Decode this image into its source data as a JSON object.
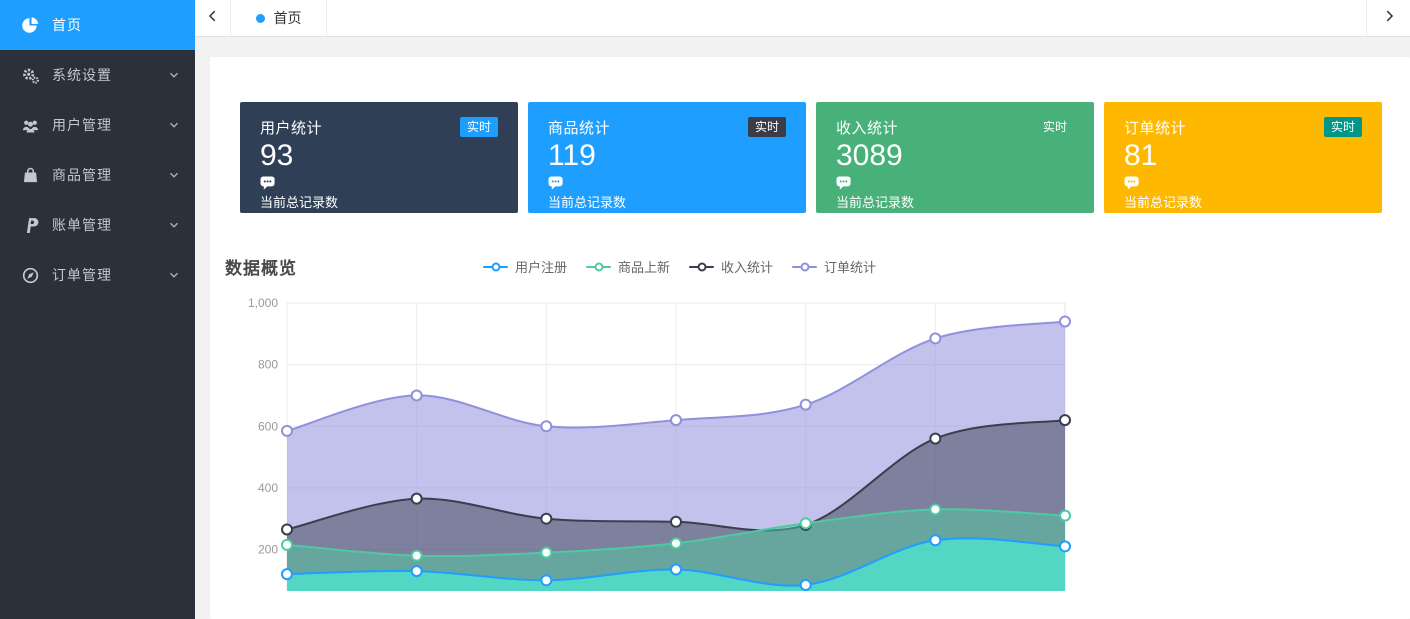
{
  "accent": "#1E9FFF",
  "sidebar": {
    "items": [
      {
        "label": "首页",
        "icon": "pie-chart-icon",
        "active": true,
        "has_children": false
      },
      {
        "label": "系统设置",
        "icon": "cogs-icon",
        "active": false,
        "has_children": true
      },
      {
        "label": "用户管理",
        "icon": "users-icon",
        "active": false,
        "has_children": true
      },
      {
        "label": "商品管理",
        "icon": "shopping-bag-icon",
        "active": false,
        "has_children": true
      },
      {
        "label": "账单管理",
        "icon": "paypal-icon",
        "active": false,
        "has_children": true
      },
      {
        "label": "订单管理",
        "icon": "compass-icon",
        "active": false,
        "has_children": true
      }
    ]
  },
  "topbar": {
    "tab_label": "首页"
  },
  "cards": [
    {
      "title": "用户统计",
      "badge": "实时",
      "value": "93",
      "note": "当前总记录数",
      "bg": "#2F4056",
      "badge_bg": "#1E9FFF"
    },
    {
      "title": "商品统计",
      "badge": "实时",
      "value": "119",
      "note": "当前总记录数",
      "bg": "#1E9FFF",
      "badge_bg": "#393D49"
    },
    {
      "title": "收入统计",
      "badge": "实时",
      "value": "3089",
      "note": "当前总记录数",
      "bg": "#47B179",
      "badge_bg": "#47B179"
    },
    {
      "title": "订单统计",
      "badge": "实时",
      "value": "81",
      "note": "当前总记录数",
      "bg": "#FFB800",
      "badge_bg": "#009688"
    }
  ],
  "overview": {
    "title": "数据概览"
  },
  "chart_data": {
    "type": "area",
    "title": "数据概览",
    "x_labels_visible": false,
    "x_points": 7,
    "ylim": [
      0,
      1000
    ],
    "ytick_labels": [
      "1,000",
      "800",
      "600",
      "400",
      "200"
    ],
    "ytick_values": [
      1000,
      800,
      600,
      400,
      200
    ],
    "grid": true,
    "legend_position": "top-center",
    "series": [
      {
        "name": "用户注册",
        "color": "#1E9FFF",
        "fill": "rgba(82,216,197,0.95)",
        "values": [
          120,
          130,
          100,
          135,
          85,
          230,
          210
        ]
      },
      {
        "name": "商品上新",
        "color": "#4FC9A2",
        "fill": "rgba(79,201,162,0.5)",
        "values": [
          215,
          180,
          190,
          220,
          285,
          330,
          310
        ]
      },
      {
        "name": "收入统计",
        "color": "#3A3F4E",
        "fill": "rgba(58,63,78,0.5)",
        "values": [
          265,
          365,
          300,
          290,
          280,
          560,
          620
        ]
      },
      {
        "name": "订单统计",
        "color": "#9090DC",
        "fill": "rgba(144,144,220,0.55)",
        "values": [
          585,
          700,
          600,
          620,
          670,
          885,
          940
        ]
      }
    ]
  }
}
